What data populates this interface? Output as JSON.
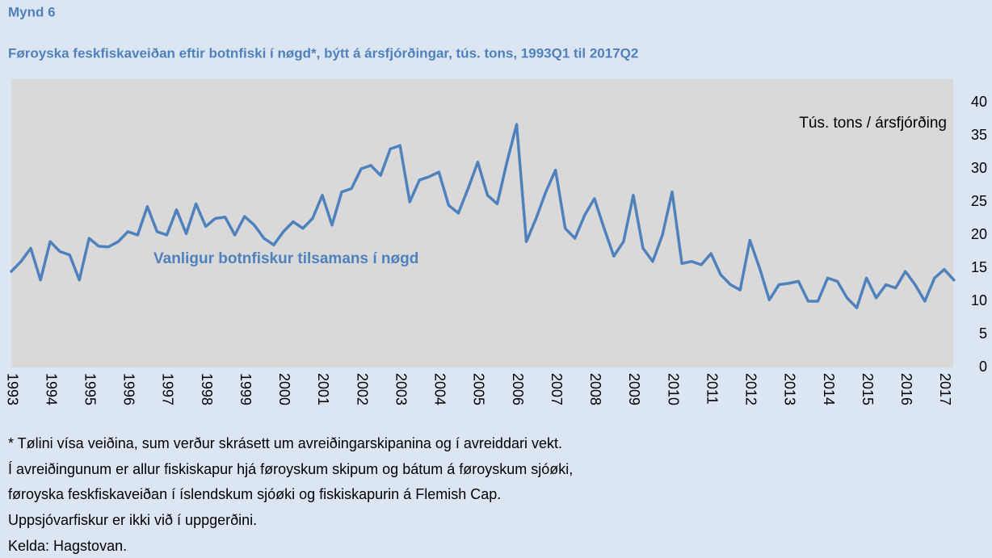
{
  "header": {
    "label": "Mynd 6"
  },
  "chart_data": {
    "type": "line",
    "title": "Føroyska feskfiskaveiðan eftir botnfiski í nøgd*, býtt á ársfjórðingar, tús. tons, 1993Q1 til 2017Q2",
    "y_label": "Tús. tons / ársfjórðing",
    "annotation": "Vanligur botnfiskur tilsamans í nøgd",
    "categories": [
      "1993",
      null,
      null,
      null,
      "1994",
      null,
      null,
      null,
      "1995",
      null,
      null,
      null,
      "1996",
      null,
      null,
      null,
      "1997",
      null,
      null,
      null,
      "1998",
      null,
      null,
      null,
      "1999",
      null,
      null,
      null,
      "2000",
      null,
      null,
      null,
      "2001",
      null,
      null,
      null,
      "2002",
      null,
      null,
      null,
      "2003",
      null,
      null,
      null,
      "2004",
      null,
      null,
      null,
      "2005",
      null,
      null,
      null,
      "2006",
      null,
      null,
      null,
      "2007",
      null,
      null,
      null,
      "2008",
      null,
      null,
      null,
      "2009",
      null,
      null,
      null,
      "2010",
      null,
      null,
      null,
      "2011",
      null,
      null,
      null,
      "2012",
      null,
      null,
      null,
      "2013",
      null,
      null,
      null,
      "2014",
      null,
      null,
      null,
      "2015",
      null,
      null,
      null,
      "2016",
      null,
      null,
      null,
      "2017",
      null
    ],
    "series": [
      {
        "name": "Vanligur botnfiskur tilsamans í nøgd",
        "color": "#4f81bd",
        "values": [
          14.5,
          16,
          18,
          13.2,
          19,
          17.5,
          17,
          13.2,
          19.5,
          18.3,
          18.2,
          19,
          20.5,
          20,
          24.3,
          20.5,
          20,
          23.8,
          20.2,
          24.7,
          21.3,
          22.5,
          22.7,
          20,
          22.8,
          21.5,
          19.5,
          18.5,
          20.5,
          22,
          21,
          22.5,
          26,
          21.5,
          26.5,
          27,
          30,
          30.5,
          29,
          33,
          33.5,
          25,
          28.3,
          28.8,
          29.5,
          24.5,
          23.3,
          27,
          31,
          26,
          24.7,
          31,
          36.7,
          19,
          22.5,
          26.5,
          29.8,
          21,
          19.5,
          23,
          25.5,
          21,
          16.8,
          19,
          26,
          18,
          16,
          20,
          26.5,
          15.7,
          16,
          15.5,
          17.2,
          14,
          12.5,
          11.7,
          19.2,
          15,
          10.2,
          12.5,
          12.7,
          13,
          10,
          10,
          13.5,
          13,
          10.5,
          9,
          13.5,
          10.5,
          12.5,
          12,
          14.5,
          12.5,
          10,
          13.5,
          14.8,
          13.2
        ]
      }
    ],
    "ylim": [
      0,
      40
    ],
    "yticks": [
      0,
      5,
      10,
      15,
      20,
      25,
      30,
      35,
      40
    ],
    "grid": false
  },
  "notes": [
    "* Tølini vísa veiðina, sum verður skrásett um avreiðingarskipanina og í avreiddari vekt.",
    "Í avreiðingunum er allur fiskiskapur hjá føroyskum skipum og bátum á føroyskum sjóøki,",
    "føroyska feskfiskaveiðan í íslendskum sjóøki og fiskiskapurin á Flemish Cap.",
    "Uppsjóvarfiskur er ikki við í uppgerðini.",
    "Kelda: Hagstovan."
  ]
}
